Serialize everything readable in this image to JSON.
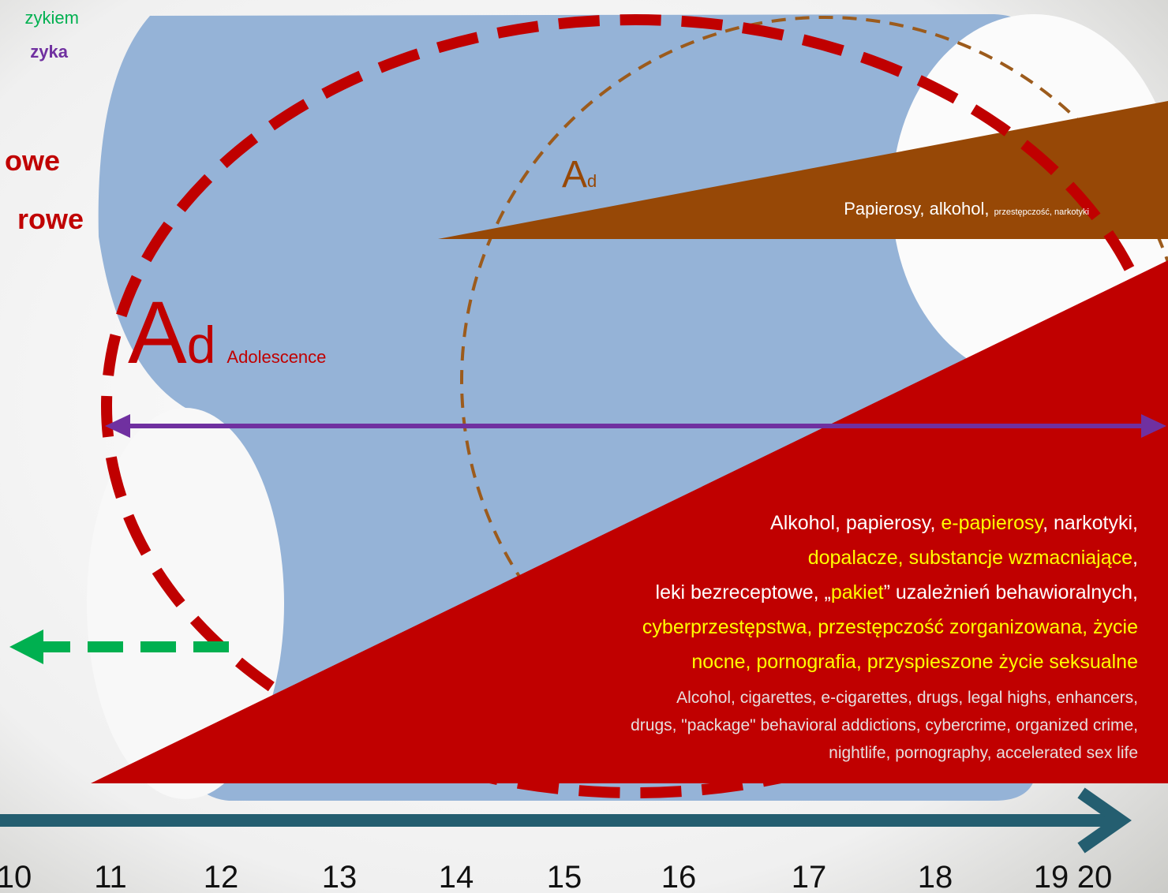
{
  "left_labels": {
    "line1": "zykiem",
    "line2": "zyka",
    "line3": "owe",
    "line4": "rowe"
  },
  "adolescence": {
    "symbol": "A",
    "subscript": "d",
    "caption": "Adolescence"
  },
  "inner_label": {
    "symbol": "A",
    "subscript": "d"
  },
  "brown_band": {
    "main": "Papierosy, alkohol, ",
    "small": "przestępczość, narkotyki"
  },
  "red_band": {
    "polish_lines": [
      [
        {
          "text": "Alkohol, papierosy, ",
          "color": "#ffffff"
        },
        {
          "text": "e-papierosy",
          "color": "#ffff00"
        },
        {
          "text": ", narkotyki,",
          "color": "#ffffff"
        }
      ],
      [
        {
          "text": "dopalacze, substancje wzmacniające",
          "color": "#ffff00"
        },
        {
          "text": ",",
          "color": "#ffffff"
        }
      ],
      [
        {
          "text": "leki bezreceptowe, „",
          "color": "#ffffff"
        },
        {
          "text": "pakiet",
          "color": "#ffff00"
        },
        {
          "text": "” uzależnień behawioralnych,",
          "color": "#ffffff"
        }
      ],
      [
        {
          "text": "cyberprzestępstwa, przestępczość zorganizowana, życie",
          "color": "#ffff00"
        }
      ],
      [
        {
          "text": "nocne, pornografia, przyspieszone życie seksualne",
          "color": "#ffff00"
        }
      ]
    ],
    "english_lines": [
      "Alcohol, cigarettes, e-cigarettes, drugs, legal highs, enhancers,",
      "drugs, \"package\" behavioral addictions, cybercrime, organized crime,",
      "nightlife, pornography, accelerated sex life"
    ]
  },
  "axis_labels": [
    "10",
    "11",
    "12",
    "13",
    "14",
    "15",
    "16",
    "17",
    "18",
    "19",
    "20"
  ]
}
